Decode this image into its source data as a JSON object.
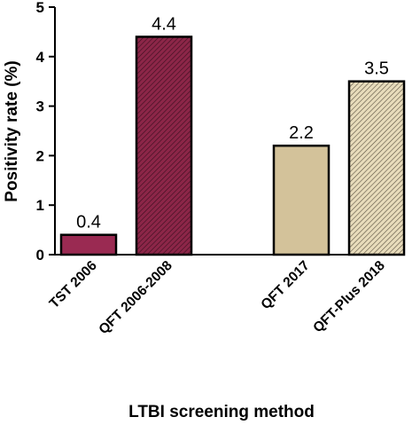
{
  "chart_data": {
    "type": "bar",
    "categories": [
      "TST 2006",
      "QFT 2006-2008",
      "QFT 2017",
      "QFT-Plus 2018"
    ],
    "values": [
      0.4,
      4.4,
      2.2,
      3.5
    ],
    "data_labels": [
      "0.4",
      "4.4",
      "2.2",
      "3.5"
    ],
    "xlabel": "LTBI screening method",
    "ylabel": "Positivity rate (%)",
    "ylim": [
      0,
      5
    ],
    "yticks": [
      "0",
      "1",
      "2",
      "3",
      "4",
      "5"
    ],
    "grid": false,
    "legend": "none",
    "bar_fills": [
      {
        "color": "#9a2a52",
        "hatch": false
      },
      {
        "color": "#8c2648",
        "hatch": true
      },
      {
        "color": "#d3c29a",
        "hatch": false
      },
      {
        "color": "#e2d6b4",
        "hatch": true
      }
    ]
  }
}
